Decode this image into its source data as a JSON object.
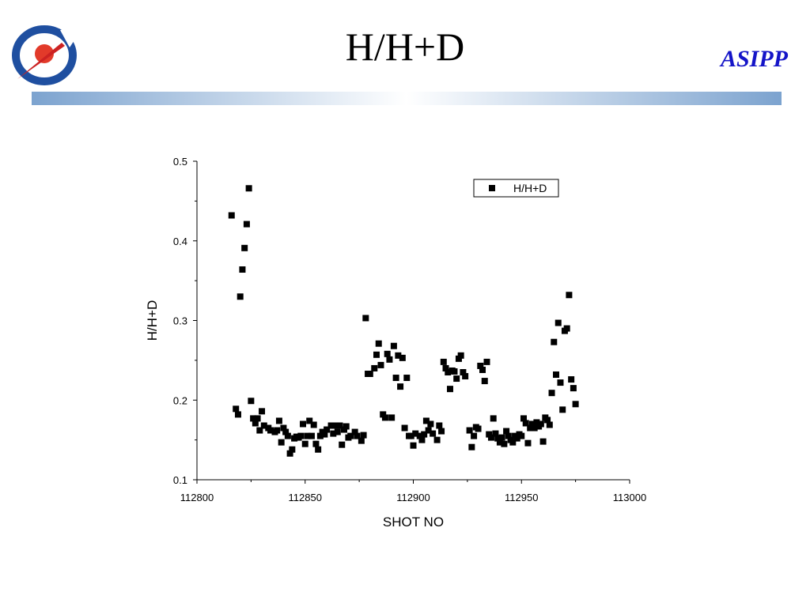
{
  "slide": {
    "title": "H/H+D",
    "org": "ASIPP",
    "org_color": "#1414c8",
    "accent_bar_color": "#7ca3cf",
    "logo_icon": "asipp-logo-icon",
    "logo_colors": {
      "ring": "#1f4fa0",
      "ball": "#e23a2a",
      "arrow": "#cc2222"
    }
  },
  "chart_data": {
    "type": "scatter",
    "title": "",
    "xlabel": "SHOT NO",
    "ylabel": "H/H+D",
    "xlim": [
      112800,
      113000
    ],
    "ylim": [
      0.1,
      0.5
    ],
    "xticks": [
      112800,
      112850,
      112900,
      112950,
      113000
    ],
    "yticks": [
      0.1,
      0.2,
      0.3,
      0.4,
      0.5
    ],
    "xtick_labels": [
      "112800",
      "112850",
      "112900",
      "112950",
      "113000"
    ],
    "ytick_labels": [
      "0.1",
      "0.2",
      "0.3",
      "0.4",
      "0.5"
    ],
    "grid": false,
    "legend_position": "top-right",
    "marker": "square",
    "series": [
      {
        "name": "H/H+D",
        "color": "#000000",
        "points": [
          [
            112816,
            0.432
          ],
          [
            112818,
            0.189
          ],
          [
            112819,
            0.182
          ],
          [
            112820,
            0.33
          ],
          [
            112821,
            0.364
          ],
          [
            112822,
            0.391
          ],
          [
            112823,
            0.421
          ],
          [
            112824,
            0.466
          ],
          [
            112825,
            0.199
          ],
          [
            112826,
            0.177
          ],
          [
            112827,
            0.171
          ],
          [
            112828,
            0.177
          ],
          [
            112829,
            0.162
          ],
          [
            112830,
            0.186
          ],
          [
            112831,
            0.168
          ],
          [
            112833,
            0.165
          ],
          [
            112834,
            0.162
          ],
          [
            112836,
            0.16
          ],
          [
            112837,
            0.162
          ],
          [
            112838,
            0.174
          ],
          [
            112839,
            0.147
          ],
          [
            112840,
            0.165
          ],
          [
            112841,
            0.16
          ],
          [
            112842,
            0.155
          ],
          [
            112843,
            0.133
          ],
          [
            112844,
            0.138
          ],
          [
            112845,
            0.152
          ],
          [
            112846,
            0.154
          ],
          [
            112847,
            0.153
          ],
          [
            112848,
            0.155
          ],
          [
            112849,
            0.17
          ],
          [
            112850,
            0.145
          ],
          [
            112851,
            0.155
          ],
          [
            112852,
            0.174
          ],
          [
            112853,
            0.155
          ],
          [
            112854,
            0.169
          ],
          [
            112855,
            0.145
          ],
          [
            112856,
            0.138
          ],
          [
            112857,
            0.155
          ],
          [
            112858,
            0.16
          ],
          [
            112859,
            0.157
          ],
          [
            112860,
            0.163
          ],
          [
            112862,
            0.168
          ],
          [
            112863,
            0.158
          ],
          [
            112864,
            0.168
          ],
          [
            112865,
            0.16
          ],
          [
            112866,
            0.168
          ],
          [
            112867,
            0.144
          ],
          [
            112868,
            0.163
          ],
          [
            112869,
            0.167
          ],
          [
            112870,
            0.153
          ],
          [
            112871,
            0.155
          ],
          [
            112873,
            0.16
          ],
          [
            112874,
            0.155
          ],
          [
            112876,
            0.149
          ],
          [
            112877,
            0.156
          ],
          [
            112878,
            0.303
          ],
          [
            112879,
            0.233
          ],
          [
            112880,
            0.233
          ],
          [
            112882,
            0.24
          ],
          [
            112883,
            0.257
          ],
          [
            112884,
            0.271
          ],
          [
            112885,
            0.244
          ],
          [
            112886,
            0.182
          ],
          [
            112887,
            0.178
          ],
          [
            112888,
            0.258
          ],
          [
            112889,
            0.251
          ],
          [
            112890,
            0.178
          ],
          [
            112891,
            0.268
          ],
          [
            112892,
            0.228
          ],
          [
            112893,
            0.256
          ],
          [
            112894,
            0.217
          ],
          [
            112895,
            0.253
          ],
          [
            112896,
            0.165
          ],
          [
            112897,
            0.228
          ],
          [
            112898,
            0.155
          ],
          [
            112899,
            0.155
          ],
          [
            112900,
            0.143
          ],
          [
            112901,
            0.158
          ],
          [
            112903,
            0.155
          ],
          [
            112904,
            0.15
          ],
          [
            112905,
            0.157
          ],
          [
            112906,
            0.174
          ],
          [
            112907,
            0.162
          ],
          [
            112908,
            0.17
          ],
          [
            112909,
            0.158
          ],
          [
            112911,
            0.15
          ],
          [
            112912,
            0.168
          ],
          [
            112913,
            0.161
          ],
          [
            112914,
            0.248
          ],
          [
            112915,
            0.24
          ],
          [
            112916,
            0.235
          ],
          [
            112917,
            0.214
          ],
          [
            112918,
            0.237
          ],
          [
            112919,
            0.236
          ],
          [
            112920,
            0.227
          ],
          [
            112921,
            0.252
          ],
          [
            112922,
            0.256
          ],
          [
            112923,
            0.235
          ],
          [
            112924,
            0.23
          ],
          [
            112926,
            0.162
          ],
          [
            112927,
            0.141
          ],
          [
            112928,
            0.155
          ],
          [
            112929,
            0.166
          ],
          [
            112930,
            0.164
          ],
          [
            112931,
            0.243
          ],
          [
            112932,
            0.238
          ],
          [
            112933,
            0.224
          ],
          [
            112934,
            0.248
          ],
          [
            112935,
            0.157
          ],
          [
            112936,
            0.153
          ],
          [
            112937,
            0.177
          ],
          [
            112938,
            0.158
          ],
          [
            112939,
            0.152
          ],
          [
            112940,
            0.147
          ],
          [
            112941,
            0.153
          ],
          [
            112942,
            0.145
          ],
          [
            112943,
            0.161
          ],
          [
            112944,
            0.155
          ],
          [
            112945,
            0.15
          ],
          [
            112946,
            0.147
          ],
          [
            112947,
            0.155
          ],
          [
            112948,
            0.152
          ],
          [
            112949,
            0.157
          ],
          [
            112950,
            0.155
          ],
          [
            112951,
            0.177
          ],
          [
            112952,
            0.171
          ],
          [
            112953,
            0.146
          ],
          [
            112954,
            0.165
          ],
          [
            112955,
            0.17
          ],
          [
            112956,
            0.165
          ],
          [
            112957,
            0.172
          ],
          [
            112958,
            0.167
          ],
          [
            112959,
            0.17
          ],
          [
            112960,
            0.148
          ],
          [
            112961,
            0.178
          ],
          [
            112962,
            0.175
          ],
          [
            112963,
            0.169
          ],
          [
            112964,
            0.209
          ],
          [
            112965,
            0.273
          ],
          [
            112966,
            0.232
          ],
          [
            112967,
            0.297
          ],
          [
            112968,
            0.222
          ],
          [
            112969,
            0.188
          ],
          [
            112970,
            0.287
          ],
          [
            112971,
            0.29
          ],
          [
            112972,
            0.332
          ],
          [
            112973,
            0.226
          ],
          [
            112974,
            0.215
          ],
          [
            112975,
            0.195
          ]
        ]
      }
    ]
  }
}
